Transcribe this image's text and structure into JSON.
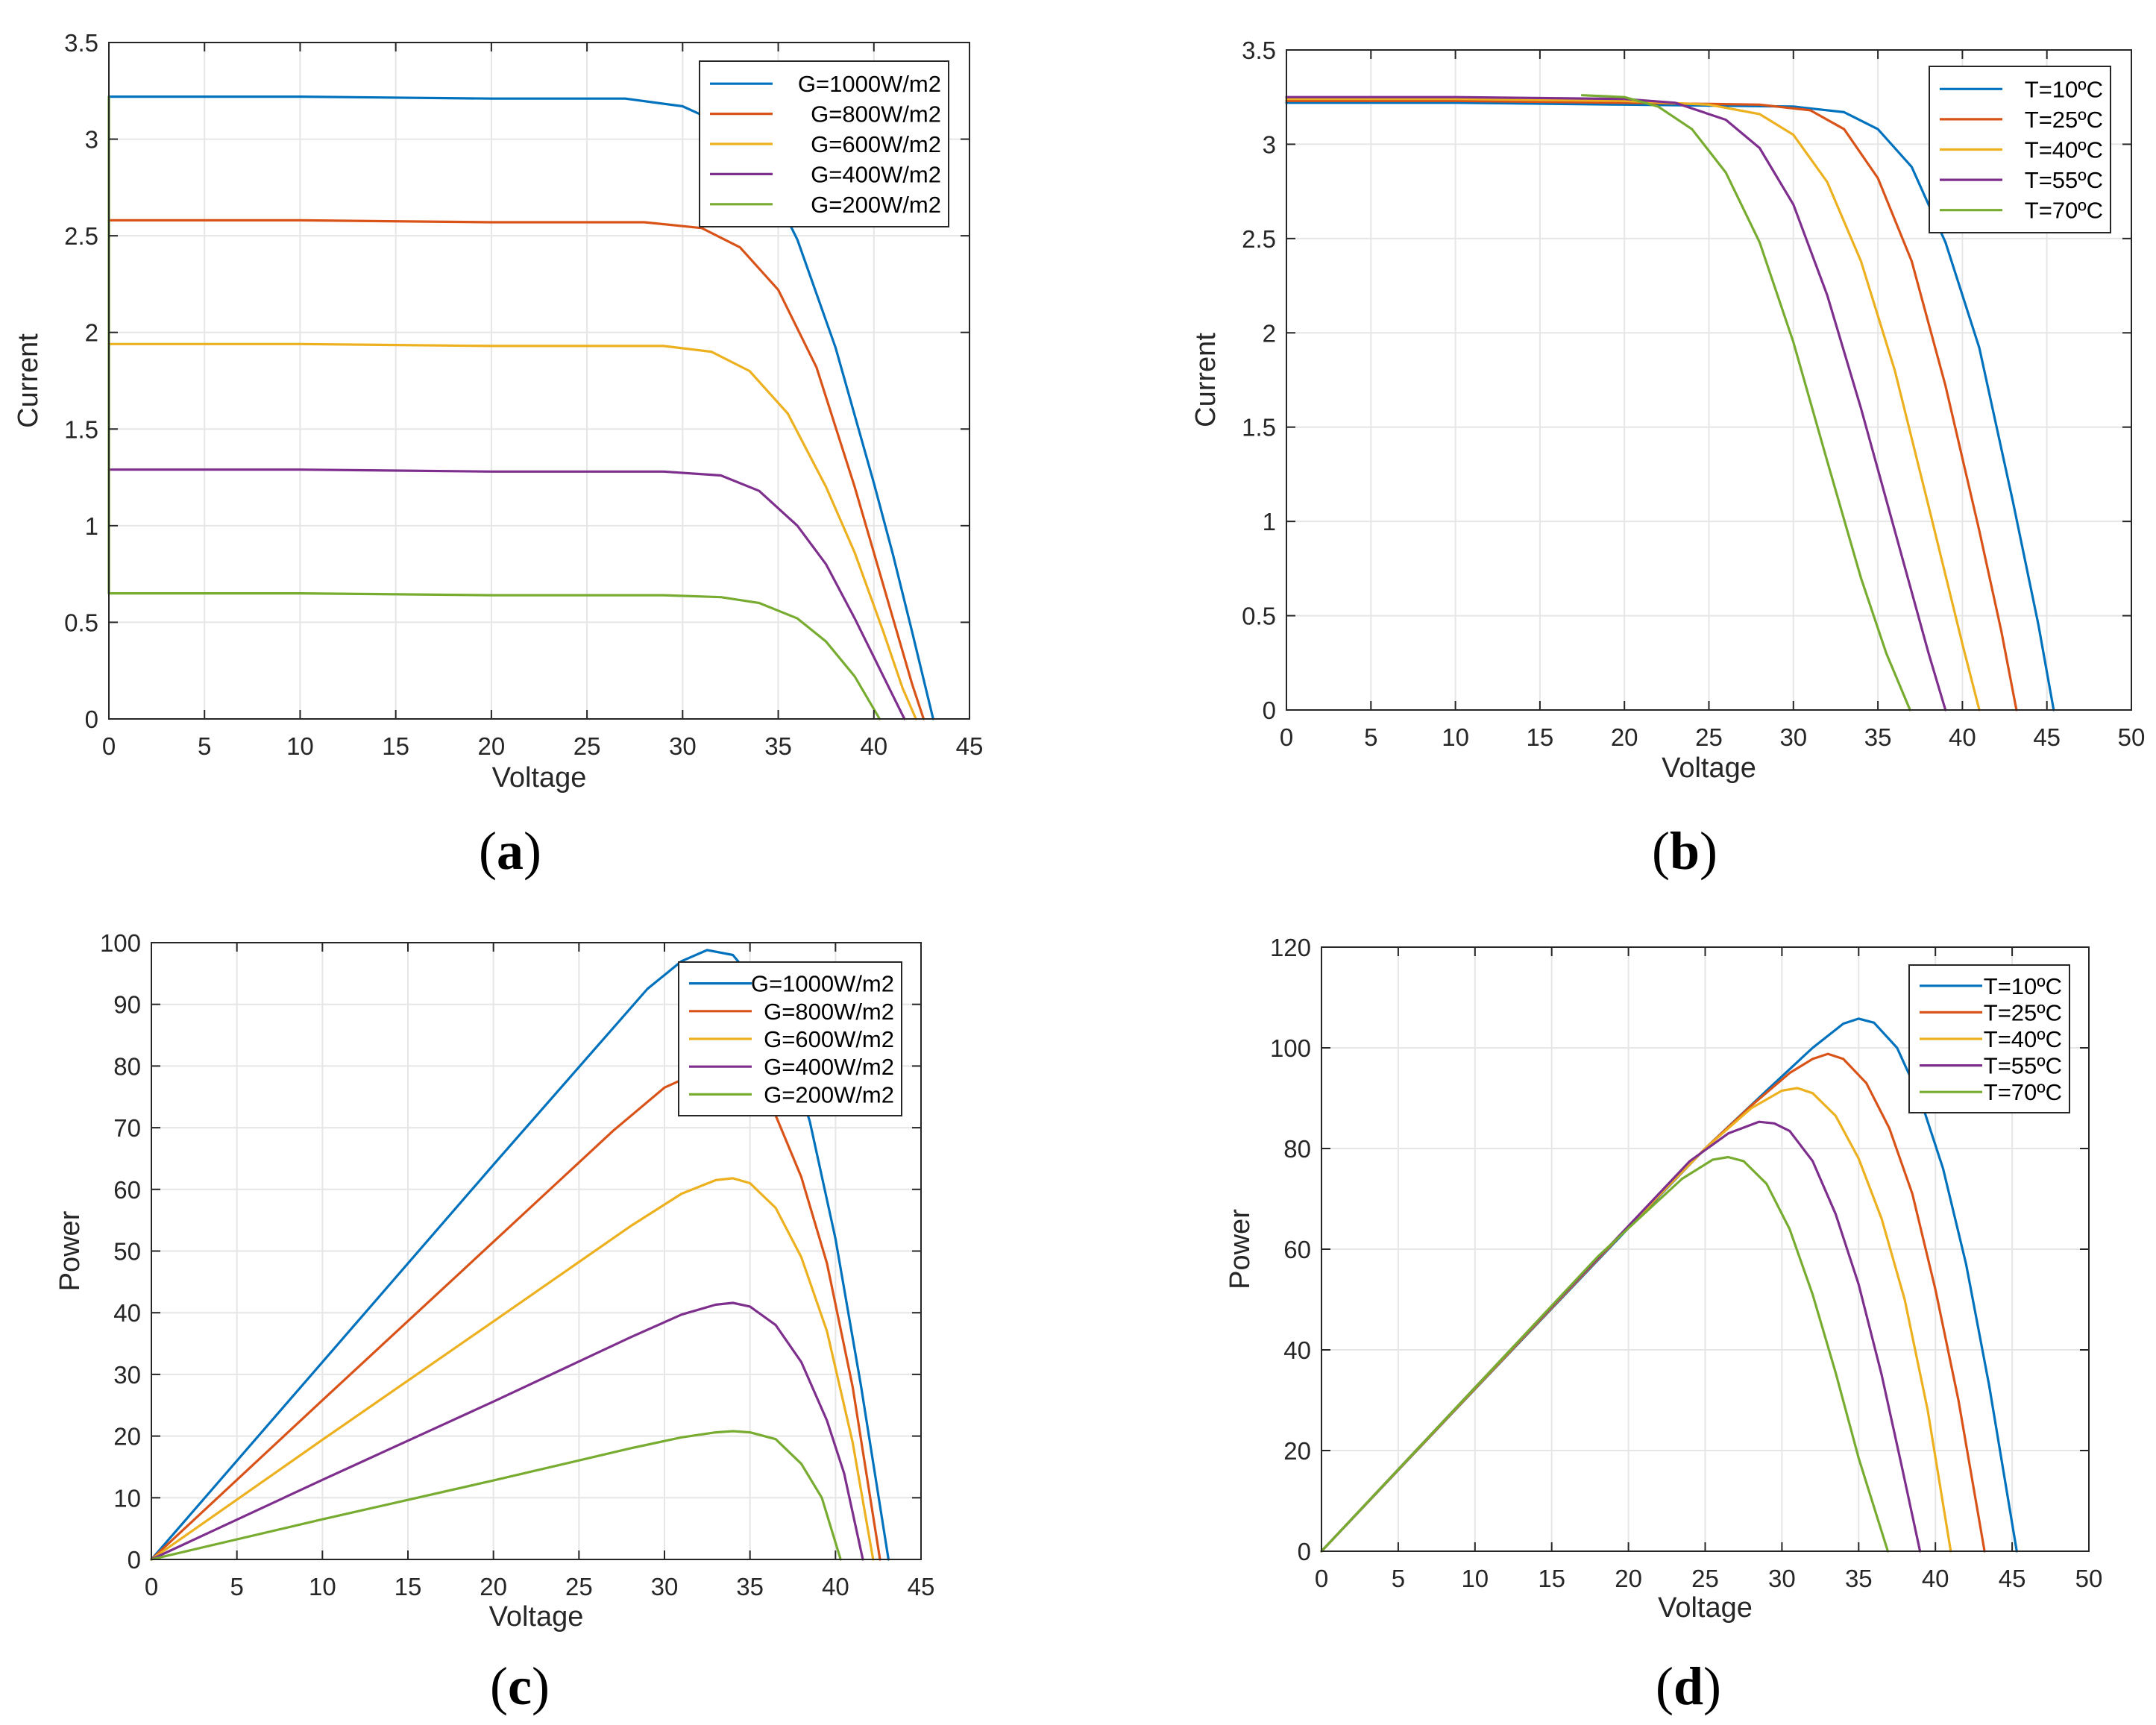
{
  "chart_data": [
    {
      "id": "a",
      "type": "line",
      "caption": "a",
      "xlabel": "Voltage",
      "ylabel": "Current",
      "xlim": [
        0,
        45
      ],
      "ylim": [
        0,
        3.5
      ],
      "xticks": [
        0,
        5,
        10,
        15,
        20,
        25,
        30,
        35,
        40,
        45
      ],
      "yticks": [
        0,
        0.5,
        1,
        1.5,
        2,
        2.5,
        3,
        3.5
      ],
      "ytick_labels": [
        "0",
        "0.5",
        "1",
        "1.5",
        "2",
        "2.5",
        "3",
        "3.5"
      ],
      "grid": true,
      "legend_position": "top-right",
      "series": [
        {
          "name": "G=1000W/m2",
          "color": "#0072BD",
          "x": [
            0,
            10,
            20,
            27,
            30,
            32,
            34,
            36,
            38,
            40,
            41,
            42,
            43.1
          ],
          "y": [
            3.22,
            3.22,
            3.21,
            3.21,
            3.17,
            3.08,
            2.88,
            2.48,
            1.92,
            1.22,
            0.85,
            0.45,
            0
          ]
        },
        {
          "name": "G=800W/m2",
          "color": "#D95319",
          "x": [
            0,
            10,
            20,
            28,
            31,
            33,
            35,
            37,
            39,
            40,
            41,
            42,
            42.6
          ],
          "y": [
            2.58,
            2.58,
            2.57,
            2.57,
            2.54,
            2.44,
            2.22,
            1.82,
            1.2,
            0.86,
            0.52,
            0.18,
            0
          ]
        },
        {
          "name": "G=600W/m2",
          "color": "#EDB120",
          "x": [
            0,
            10,
            20,
            29,
            31.5,
            33.5,
            35.5,
            37.5,
            39,
            40.5,
            41.5,
            42.2
          ],
          "y": [
            1.94,
            1.94,
            1.93,
            1.93,
            1.9,
            1.8,
            1.58,
            1.2,
            0.86,
            0.45,
            0.16,
            0
          ]
        },
        {
          "name": "G=400W/m2",
          "color": "#7E2F8E",
          "x": [
            0,
            10,
            20,
            29,
            32,
            34,
            36,
            37.5,
            39,
            40,
            41,
            41.6
          ],
          "y": [
            1.29,
            1.29,
            1.28,
            1.28,
            1.26,
            1.18,
            1.0,
            0.8,
            0.52,
            0.32,
            0.12,
            0
          ]
        },
        {
          "name": "G=200W/m2",
          "color": "#77AC30",
          "x": [
            0,
            0,
            0,
            10,
            20,
            29,
            32,
            34,
            36,
            37.5,
            39,
            40.3
          ],
          "y": [
            3.22,
            1.5,
            0.65,
            0.65,
            0.64,
            0.64,
            0.63,
            0.6,
            0.52,
            0.4,
            0.22,
            0
          ]
        }
      ]
    },
    {
      "id": "b",
      "type": "line",
      "caption": "b",
      "xlabel": "Voltage",
      "ylabel": "Current",
      "xlim": [
        0,
        50
      ],
      "ylim": [
        0,
        3.5
      ],
      "xticks": [
        0,
        5,
        10,
        15,
        20,
        25,
        30,
        35,
        40,
        45,
        50
      ],
      "yticks": [
        0,
        0.5,
        1,
        1.5,
        2,
        2.5,
        3,
        3.5
      ],
      "ytick_labels": [
        "0",
        "0.5",
        "1",
        "1.5",
        "2",
        "2.5",
        "3",
        "3.5"
      ],
      "grid": true,
      "legend_position": "top-right",
      "series": [
        {
          "name": "T=10ºC",
          "color": "#0072BD",
          "x": [
            0,
            10,
            20,
            30,
            33,
            35,
            37,
            39,
            41,
            43,
            44.5,
            45.4
          ],
          "y": [
            3.22,
            3.22,
            3.21,
            3.2,
            3.17,
            3.08,
            2.88,
            2.48,
            1.92,
            1.1,
            0.45,
            0
          ]
        },
        {
          "name": "T=25ºC",
          "color": "#D95319",
          "x": [
            0,
            10,
            20,
            28,
            31,
            33,
            35,
            37,
            39,
            41,
            42.3,
            43.2
          ],
          "y": [
            3.23,
            3.23,
            3.22,
            3.21,
            3.18,
            3.08,
            2.82,
            2.38,
            1.72,
            0.95,
            0.42,
            0
          ]
        },
        {
          "name": "T=40ºC",
          "color": "#EDB120",
          "x": [
            0,
            10,
            20,
            25,
            28,
            30,
            32,
            34,
            36,
            38,
            40,
            41
          ],
          "y": [
            3.24,
            3.24,
            3.23,
            3.21,
            3.16,
            3.05,
            2.8,
            2.38,
            1.8,
            1.08,
            0.35,
            0
          ]
        },
        {
          "name": "T=55ºC",
          "color": "#7E2F8E",
          "x": [
            0,
            10,
            20,
            23,
            26,
            28,
            30,
            32,
            34,
            36,
            38,
            39
          ],
          "y": [
            3.25,
            3.25,
            3.24,
            3.22,
            3.13,
            2.98,
            2.68,
            2.2,
            1.6,
            0.95,
            0.3,
            0
          ]
        },
        {
          "name": "T=70ºC",
          "color": "#77AC30",
          "x": [
            17.5,
            20,
            22,
            24,
            26,
            28,
            30,
            32,
            34,
            35.5,
            36.9
          ],
          "y": [
            3.26,
            3.25,
            3.2,
            3.08,
            2.85,
            2.48,
            1.95,
            1.32,
            0.7,
            0.3,
            0
          ]
        }
      ]
    },
    {
      "id": "c",
      "type": "line",
      "caption": "c",
      "xlabel": "Voltage",
      "ylabel": "Power",
      "xlim": [
        0,
        45
      ],
      "ylim": [
        0,
        100
      ],
      "xticks": [
        0,
        5,
        10,
        15,
        20,
        25,
        30,
        35,
        40,
        45
      ],
      "yticks": [
        0,
        10,
        20,
        30,
        40,
        50,
        60,
        70,
        80,
        90,
        100
      ],
      "ytick_labels": [
        "0",
        "10",
        "20",
        "30",
        "40",
        "50",
        "60",
        "70",
        "80",
        "90",
        "100"
      ],
      "grid": true,
      "legend_position": "top-right",
      "series": [
        {
          "name": "G=1000W/m2",
          "color": "#0072BD",
          "x": [
            0,
            10,
            20,
            26,
            29,
            31,
            32.5,
            34,
            35.5,
            37,
            38.5,
            40,
            41.5,
            43.1
          ],
          "y": [
            0,
            32,
            64,
            83,
            92.5,
            97,
            98.8,
            98,
            93,
            84,
            71,
            52,
            28,
            0
          ]
        },
        {
          "name": "G=800W/m2",
          "color": "#D95319",
          "x": [
            0,
            10,
            20,
            27,
            30,
            32,
            33.5,
            35,
            36.5,
            38,
            39.5,
            41,
            42.6
          ],
          "y": [
            0,
            25.8,
            51.5,
            69.5,
            76.5,
            79,
            79.5,
            77.5,
            72,
            62,
            48,
            28,
            0
          ]
        },
        {
          "name": "G=600W/m2",
          "color": "#EDB120",
          "x": [
            0,
            10,
            20,
            28,
            31,
            33,
            34,
            35,
            36.5,
            38,
            39.5,
            41,
            42.2
          ],
          "y": [
            0,
            19.4,
            38.6,
            54,
            59.3,
            61.5,
            61.8,
            61,
            57,
            49,
            37,
            19,
            0
          ]
        },
        {
          "name": "G=400W/m2",
          "color": "#7E2F8E",
          "x": [
            0,
            10,
            20,
            28,
            31,
            33,
            34,
            35,
            36.5,
            38,
            39.5,
            40.5,
            41.6
          ],
          "y": [
            0,
            12.9,
            25.6,
            36,
            39.7,
            41.3,
            41.6,
            41,
            38,
            32,
            22.5,
            14,
            0
          ]
        },
        {
          "name": "G=200W/m2",
          "color": "#77AC30",
          "x": [
            0,
            10,
            20,
            28,
            31,
            33,
            34,
            35,
            36.5,
            38,
            39.2,
            40.3
          ],
          "y": [
            0,
            6.5,
            12.8,
            18,
            19.8,
            20.6,
            20.8,
            20.6,
            19.5,
            15.5,
            10,
            0
          ]
        }
      ]
    },
    {
      "id": "d",
      "type": "line",
      "caption": "d",
      "xlabel": "Voltage",
      "ylabel": "Power",
      "xlim": [
        0,
        50
      ],
      "ylim": [
        0,
        120
      ],
      "xticks": [
        0,
        5,
        10,
        15,
        20,
        25,
        30,
        35,
        40,
        45,
        50
      ],
      "yticks": [
        0,
        20,
        40,
        60,
        80,
        100,
        120
      ],
      "ytick_labels": [
        "0",
        "20",
        "40",
        "60",
        "80",
        "100",
        "120"
      ],
      "grid": true,
      "legend_position": "top-right",
      "series": [
        {
          "name": "T=10ºC",
          "color": "#0072BD",
          "x": [
            0,
            10,
            20,
            25,
            29,
            32,
            34,
            35,
            36,
            37.5,
            39,
            40.5,
            42,
            43.5,
            45.3
          ],
          "y": [
            0,
            32.2,
            64.2,
            80,
            91.5,
            100,
            104.8,
            105.8,
            105,
            100,
            90,
            76,
            57,
            33,
            0
          ]
        },
        {
          "name": "T=25ºC",
          "color": "#D95319",
          "x": [
            0,
            10,
            20,
            25,
            28,
            30.5,
            32,
            33,
            34,
            35.5,
            37,
            38.5,
            40,
            41.5,
            43.2
          ],
          "y": [
            0,
            32.3,
            64.4,
            80,
            88.5,
            95,
            97.8,
            98.8,
            97.8,
            93,
            84,
            71,
            52,
            30,
            0
          ]
        },
        {
          "name": "T=40ºC",
          "color": "#EDB120",
          "x": [
            0,
            10,
            20,
            25,
            28,
            30,
            31,
            32,
            33.5,
            35,
            36.5,
            38,
            39.5,
            41
          ],
          "y": [
            0,
            32.4,
            64.5,
            80,
            88,
            91.5,
            92,
            91,
            86.5,
            78,
            66,
            50,
            28,
            0
          ]
        },
        {
          "name": "T=55ºC",
          "color": "#7E2F8E",
          "x": [
            0,
            10,
            20,
            24,
            26.5,
            28.5,
            29.5,
            30.5,
            32,
            33.5,
            35,
            36.5,
            37.8,
            39
          ],
          "y": [
            0,
            32.5,
            64.6,
            77.5,
            83,
            85.3,
            85,
            83.5,
            77.5,
            67,
            53,
            35,
            17,
            0
          ]
        },
        {
          "name": "T=70ºC",
          "color": "#77AC30",
          "x": [
            0,
            10,
            18,
            21,
            23.5,
            25.5,
            26.5,
            27.5,
            29,
            30.5,
            32,
            33.5,
            35,
            36.9
          ],
          "y": [
            0,
            32.5,
            58.5,
            67,
            74,
            77.8,
            78.3,
            77.5,
            73,
            64,
            51,
            35.5,
            18.5,
            0
          ]
        }
      ]
    }
  ]
}
